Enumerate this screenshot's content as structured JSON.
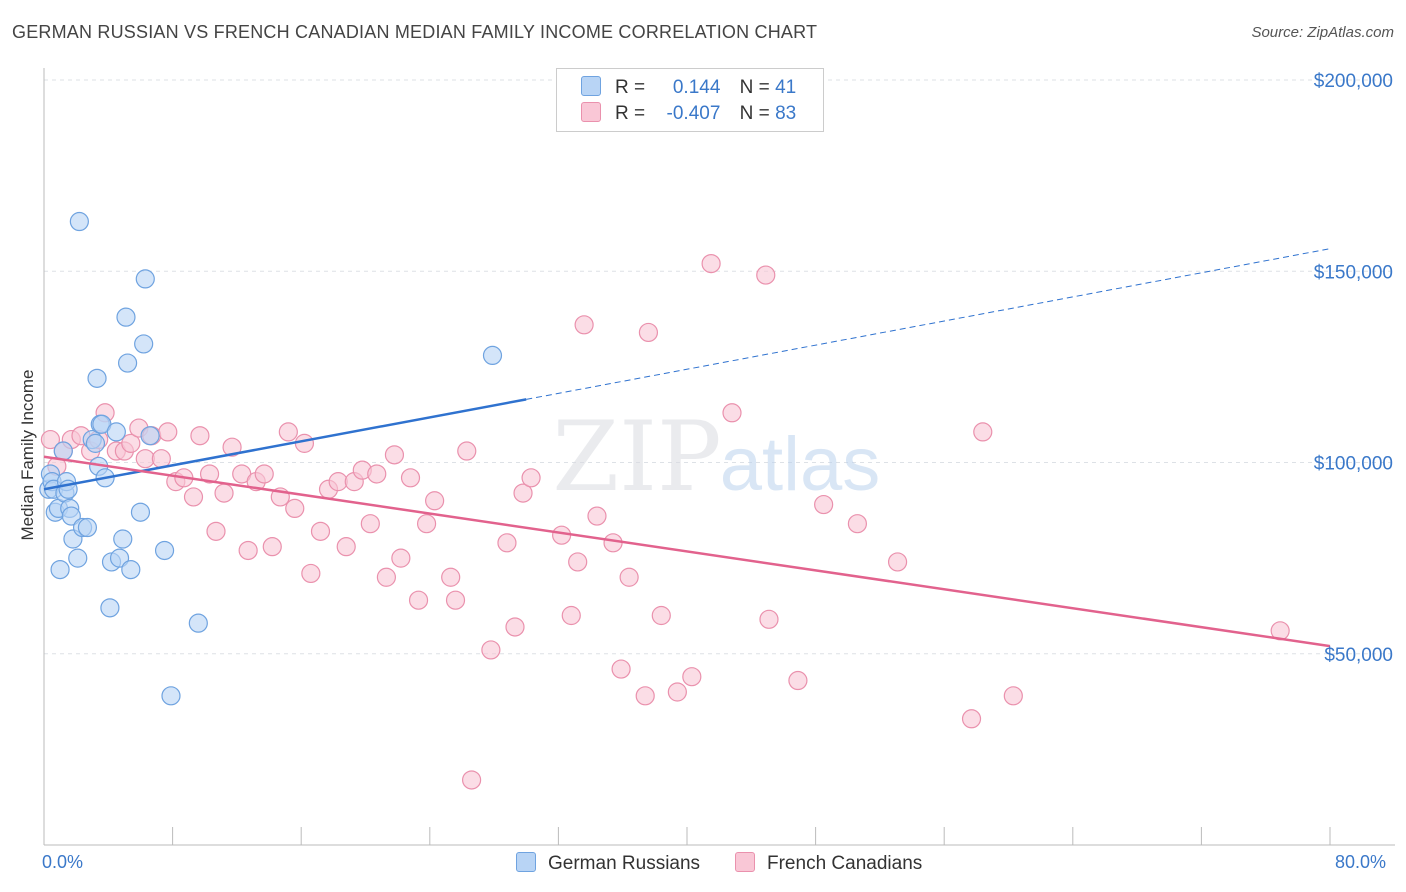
{
  "title": "GERMAN RUSSIAN VS FRENCH CANADIAN MEDIAN FAMILY INCOME CORRELATION CHART",
  "source": "Source: ZipAtlas.com",
  "watermark": {
    "zip": "ZIP",
    "atlas": "atlas"
  },
  "legend": {
    "rows": [
      {
        "r_label": "R =",
        "r_value": "0.144",
        "n_label": "N =",
        "n_value": "41"
      },
      {
        "r_label": "R =",
        "r_value": "-0.407",
        "n_label": "N =",
        "n_value": "83"
      }
    ]
  },
  "colors": {
    "blue_fill": "#b8d4f5",
    "blue_stroke": "#6fa3e0",
    "blue_line": "#2f72cf",
    "pink_fill": "#f9c7d6",
    "pink_stroke": "#ea91ad",
    "pink_line": "#e2628d",
    "accent_text": "#3a78c9"
  },
  "chart_data": {
    "type": "scatter",
    "title": "GERMAN RUSSIAN VS FRENCH CANADIAN MEDIAN FAMILY INCOME CORRELATION CHART",
    "xlabel": "",
    "ylabel": "Median Family Income",
    "xlim": [
      0,
      80
    ],
    "ylim": [
      0,
      200000
    ],
    "x_tick_labels": [
      "0.0%",
      "80.0%"
    ],
    "y_ticks": [
      50000,
      100000,
      150000,
      200000
    ],
    "y_tick_labels": [
      "$50,000",
      "$100,000",
      "$150,000",
      "$200,000"
    ],
    "grid": true,
    "legend_position": "top-center",
    "series": [
      {
        "name": "German Russians",
        "r": 0.144,
        "n": 41,
        "trend": {
          "x0": 0,
          "y0": 93000,
          "x1": 30,
          "y1": 116500,
          "dashed_to_x": 80,
          "dashed_to_y": 155900
        },
        "points": [
          [
            0.3,
            93000
          ],
          [
            0.4,
            97000
          ],
          [
            0.5,
            95000
          ],
          [
            0.6,
            93000
          ],
          [
            0.7,
            87000
          ],
          [
            0.9,
            88000
          ],
          [
            1.0,
            72000
          ],
          [
            1.2,
            103000
          ],
          [
            1.3,
            92000
          ],
          [
            1.4,
            95000
          ],
          [
            1.5,
            93000
          ],
          [
            1.6,
            88000
          ],
          [
            1.7,
            86000
          ],
          [
            1.8,
            80000
          ],
          [
            2.1,
            75000
          ],
          [
            2.2,
            163000
          ],
          [
            2.4,
            83000
          ],
          [
            2.7,
            83000
          ],
          [
            3.0,
            106000
          ],
          [
            3.2,
            105000
          ],
          [
            3.3,
            122000
          ],
          [
            3.4,
            99000
          ],
          [
            3.5,
            110000
          ],
          [
            3.6,
            110000
          ],
          [
            3.8,
            96000
          ],
          [
            4.1,
            62000
          ],
          [
            4.2,
            74000
          ],
          [
            4.5,
            108000
          ],
          [
            4.7,
            75000
          ],
          [
            4.9,
            80000
          ],
          [
            5.1,
            138000
          ],
          [
            5.2,
            126000
          ],
          [
            5.4,
            72000
          ],
          [
            6.0,
            87000
          ],
          [
            6.2,
            131000
          ],
          [
            6.3,
            148000
          ],
          [
            6.6,
            107000
          ],
          [
            7.5,
            77000
          ],
          [
            7.9,
            39000
          ],
          [
            9.6,
            58000
          ],
          [
            27.9,
            128000
          ]
        ]
      },
      {
        "name": "French Canadians",
        "r": -0.407,
        "n": 83,
        "trend": {
          "x0": 0,
          "y0": 101500,
          "x1": 80,
          "y1": 52000
        },
        "points": [
          [
            0.4,
            106000
          ],
          [
            0.8,
            99000
          ],
          [
            1.2,
            103000
          ],
          [
            1.7,
            106000
          ],
          [
            2.3,
            107000
          ],
          [
            2.9,
            103000
          ],
          [
            3.4,
            106000
          ],
          [
            3.8,
            113000
          ],
          [
            4.5,
            103000
          ],
          [
            5.0,
            103000
          ],
          [
            5.4,
            105000
          ],
          [
            5.9,
            109000
          ],
          [
            6.3,
            101000
          ],
          [
            6.7,
            107000
          ],
          [
            7.3,
            101000
          ],
          [
            7.7,
            108000
          ],
          [
            8.2,
            95000
          ],
          [
            8.7,
            96000
          ],
          [
            9.3,
            91000
          ],
          [
            9.7,
            107000
          ],
          [
            10.3,
            97000
          ],
          [
            10.7,
            82000
          ],
          [
            11.2,
            92000
          ],
          [
            11.7,
            104000
          ],
          [
            12.3,
            97000
          ],
          [
            12.7,
            77000
          ],
          [
            13.2,
            95000
          ],
          [
            13.7,
            97000
          ],
          [
            14.2,
            78000
          ],
          [
            14.7,
            91000
          ],
          [
            15.2,
            108000
          ],
          [
            15.6,
            88000
          ],
          [
            16.2,
            105000
          ],
          [
            16.6,
            71000
          ],
          [
            17.2,
            82000
          ],
          [
            17.7,
            93000
          ],
          [
            18.3,
            95000
          ],
          [
            18.8,
            78000
          ],
          [
            19.3,
            95000
          ],
          [
            19.8,
            98000
          ],
          [
            20.3,
            84000
          ],
          [
            20.7,
            97000
          ],
          [
            21.3,
            70000
          ],
          [
            21.8,
            102000
          ],
          [
            22.2,
            75000
          ],
          [
            22.8,
            96000
          ],
          [
            23.3,
            64000
          ],
          [
            23.8,
            84000
          ],
          [
            24.3,
            90000
          ],
          [
            25.3,
            70000
          ],
          [
            25.6,
            64000
          ],
          [
            26.3,
            103000
          ],
          [
            26.6,
            17000
          ],
          [
            27.8,
            51000
          ],
          [
            28.8,
            79000
          ],
          [
            29.3,
            57000
          ],
          [
            29.8,
            92000
          ],
          [
            30.3,
            96000
          ],
          [
            32.2,
            81000
          ],
          [
            32.8,
            60000
          ],
          [
            33.2,
            74000
          ],
          [
            33.6,
            136000
          ],
          [
            34.4,
            86000
          ],
          [
            35.4,
            79000
          ],
          [
            35.9,
            46000
          ],
          [
            36.4,
            70000
          ],
          [
            37.4,
            39000
          ],
          [
            37.6,
            134000
          ],
          [
            38.4,
            60000
          ],
          [
            39.4,
            40000
          ],
          [
            40.3,
            44000
          ],
          [
            41.5,
            152000
          ],
          [
            42.8,
            113000
          ],
          [
            44.9,
            149000
          ],
          [
            45.1,
            59000
          ],
          [
            46.9,
            43000
          ],
          [
            48.5,
            89000
          ],
          [
            50.6,
            84000
          ],
          [
            53.1,
            74000
          ],
          [
            57.7,
            33000
          ],
          [
            58.4,
            108000
          ],
          [
            60.3,
            39000
          ],
          [
            76.9,
            56000
          ]
        ]
      }
    ]
  }
}
